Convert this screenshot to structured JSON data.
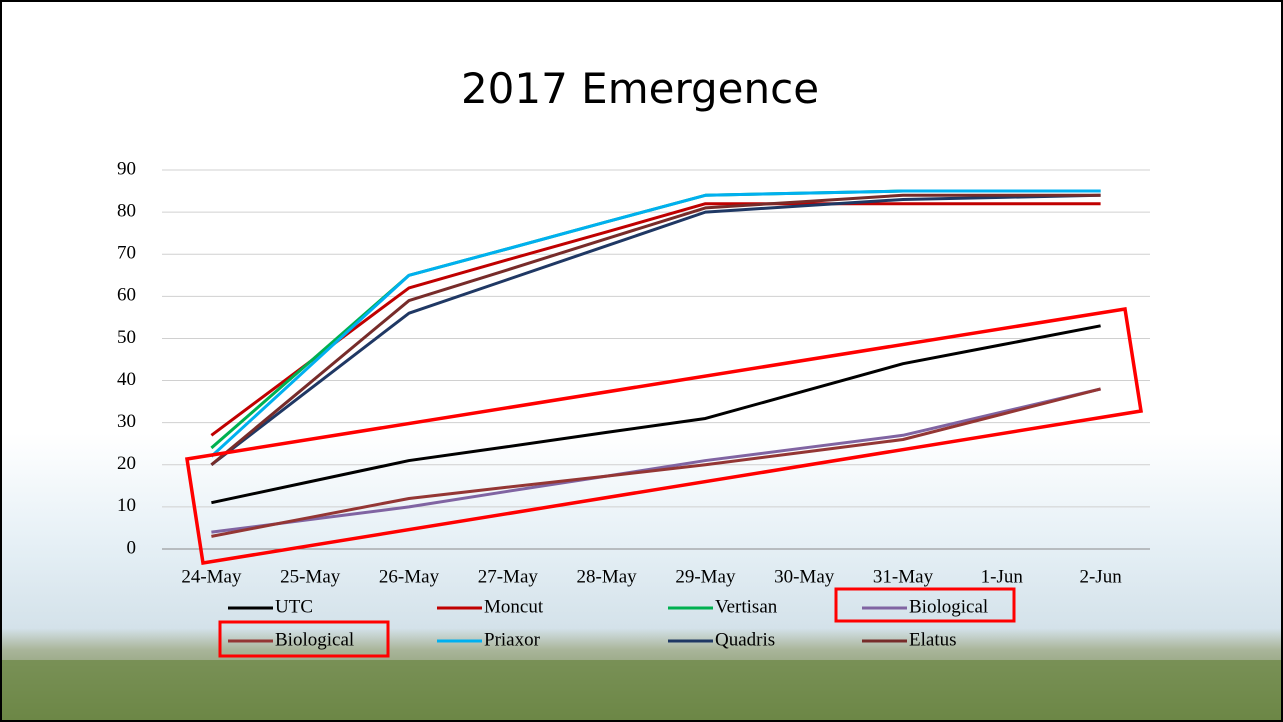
{
  "chart_data": {
    "type": "line",
    "title": "2017 Emergence",
    "categories": [
      "24-May",
      "25-May",
      "26-May",
      "27-May",
      "28-May",
      "29-May",
      "30-May",
      "31-May",
      "1-Jun",
      "2-Jun"
    ],
    "ylim": [
      0,
      90
    ],
    "yticks": [
      0,
      10,
      20,
      30,
      40,
      50,
      60,
      70,
      80,
      90
    ],
    "grid": true,
    "series": [
      {
        "name": "UTC",
        "color": "#000000",
        "values": [
          11,
          16,
          21,
          24.3,
          27.7,
          31,
          37.5,
          44,
          48.5,
          53
        ]
      },
      {
        "name": "Moncut",
        "color": "#c00000",
        "values": [
          27,
          44.5,
          62,
          68.7,
          75.3,
          82,
          82,
          82,
          82,
          82
        ]
      },
      {
        "name": "Vertisan",
        "color": "#00b050",
        "values": [
          24,
          44.5,
          65,
          71.3,
          77.7,
          84,
          84.5,
          85,
          85,
          85
        ]
      },
      {
        "name": "Biological",
        "color": "#8064a2",
        "values": [
          4,
          7,
          10,
          13.7,
          17.3,
          21,
          24,
          27,
          32.5,
          38
        ]
      },
      {
        "name": "Biological",
        "color": "#943634",
        "values": [
          3,
          7.5,
          12,
          14.7,
          17.3,
          20,
          23,
          26,
          32,
          38
        ]
      },
      {
        "name": "Priaxor",
        "color": "#00b0f0",
        "values": [
          22,
          43.5,
          65,
          71.3,
          77.7,
          84,
          84.5,
          85,
          85,
          85
        ]
      },
      {
        "name": "Quadris",
        "color": "#1f3864",
        "values": [
          20,
          38,
          56,
          64,
          72,
          80,
          81.5,
          83,
          83.5,
          84
        ]
      },
      {
        "name": "Elatus",
        "color": "#772c2a",
        "values": [
          20,
          39.5,
          59,
          66.3,
          73.7,
          81,
          82.5,
          84,
          84,
          84
        ]
      }
    ]
  }
}
